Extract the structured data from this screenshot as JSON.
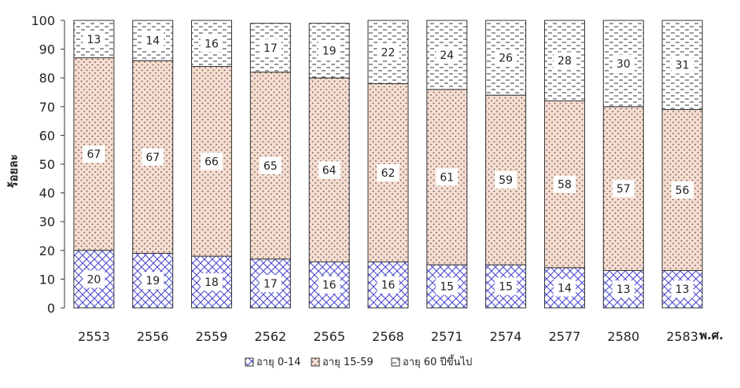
{
  "chart_data": {
    "type": "bar",
    "stacked": true,
    "categories": [
      "2553",
      "2556",
      "2559",
      "2562",
      "2565",
      "2568",
      "2571",
      "2574",
      "2577",
      "2580",
      "2583"
    ],
    "series": [
      {
        "name": "อายุ 0-14",
        "values": [
          20,
          19,
          18,
          17,
          16,
          16,
          15,
          15,
          14,
          13,
          13
        ],
        "pattern": "crosshatch",
        "color": "#4a4ad0"
      },
      {
        "name": "อายุ 15-59",
        "values": [
          67,
          67,
          66,
          65,
          64,
          62,
          61,
          59,
          58,
          57,
          56
        ],
        "pattern": "dots",
        "color": "#f7ddd0"
      },
      {
        "name": "อายุ 60 ปีขึ้นไป",
        "values": [
          13,
          14,
          16,
          17,
          19,
          22,
          24,
          26,
          28,
          30,
          31
        ],
        "pattern": "dashes",
        "color": "#ffffff"
      }
    ],
    "ylabel": "ร้อยละ",
    "xlabel": "พ.ศ.",
    "ylim": [
      0,
      100
    ],
    "yticks": [
      0,
      10,
      20,
      30,
      40,
      50,
      60,
      70,
      80,
      90,
      100
    ],
    "legend_position": "bottom"
  }
}
